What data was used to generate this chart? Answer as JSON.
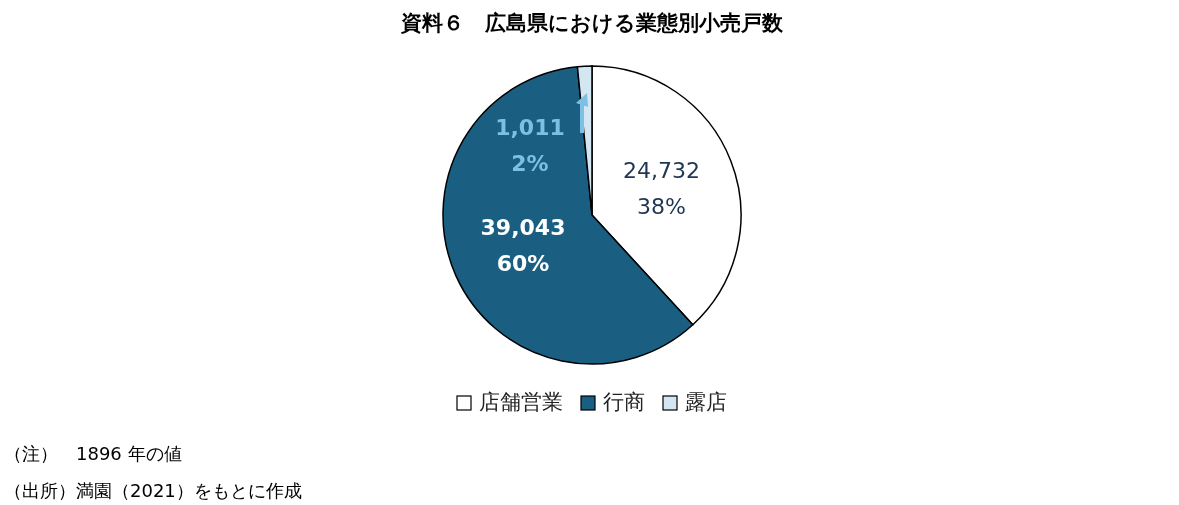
{
  "chart_data": {
    "type": "pie",
    "title": "資料６　広島県における業態別小売戸数",
    "categories": [
      "店舗営業",
      "行商",
      "露店"
    ],
    "values": [
      24732,
      39043,
      1011
    ],
    "colors": [
      "#ffffff",
      "#1a5f82",
      "#d4e6f1"
    ],
    "value_labels": [
      "24,732\n38%",
      "39,043\n60%",
      "1,011\n2%"
    ],
    "legend": "bottom",
    "annotations": [
      "（注）　1896 年の値",
      "（出所）満園（2021）をもとに作成"
    ]
  }
}
